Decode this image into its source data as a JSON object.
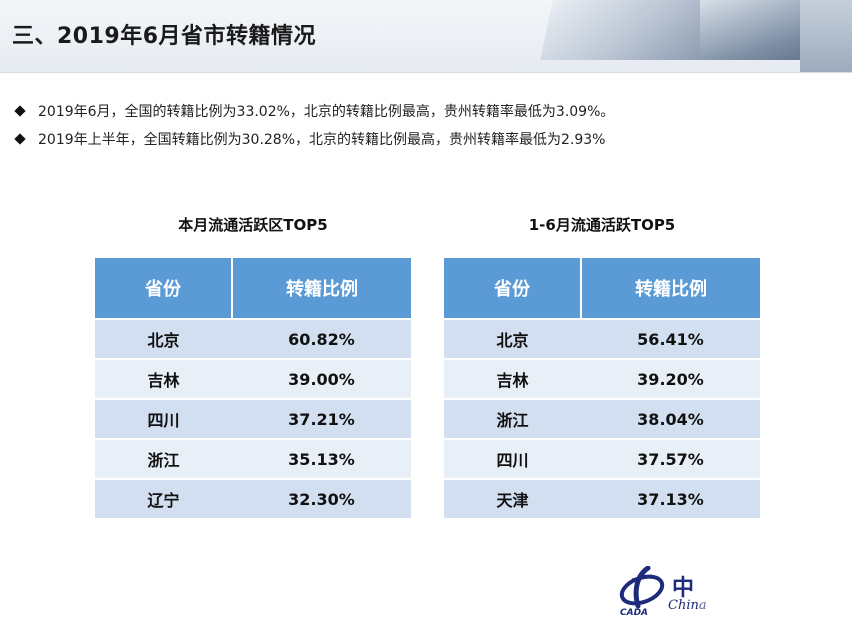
{
  "header": {
    "title": "三、2019年6月省市转籍情况"
  },
  "bullets": [
    "2019年6月，全国的转籍比例为33.02%，北京的转籍比例最高，贵州转籍率最低为3.09%。",
    "2019年上半年，全国转籍比例为30.28%，北京的转籍比例最高，贵州转籍率最低为2.93%"
  ],
  "tables": [
    {
      "title": "本月流通活跃区TOP5",
      "headers": [
        "省份",
        "转籍比例"
      ],
      "rows": [
        [
          "北京",
          "60.82%"
        ],
        [
          "吉林",
          "39.00%"
        ],
        [
          "四川",
          "37.21%"
        ],
        [
          "浙江",
          "35.13%"
        ],
        [
          "辽宁",
          "32.30%"
        ]
      ]
    },
    {
      "title": "1-6月流通活跃TOP5",
      "headers": [
        "省份",
        "转籍比例"
      ],
      "rows": [
        [
          "北京",
          "56.41%"
        ],
        [
          "吉林",
          "39.20%"
        ],
        [
          "浙江",
          "38.04%"
        ],
        [
          "四川",
          "37.57%"
        ],
        [
          "天津",
          "37.13%"
        ]
      ]
    }
  ],
  "logo": {
    "cn": "中",
    "en": "China",
    "abbr": "CADA"
  },
  "colors": {
    "header_blue": "#5b9bd5",
    "row_dark": "#d2dff0",
    "row_light": "#e9eff7",
    "logo_blue": "#1d2b7a"
  }
}
